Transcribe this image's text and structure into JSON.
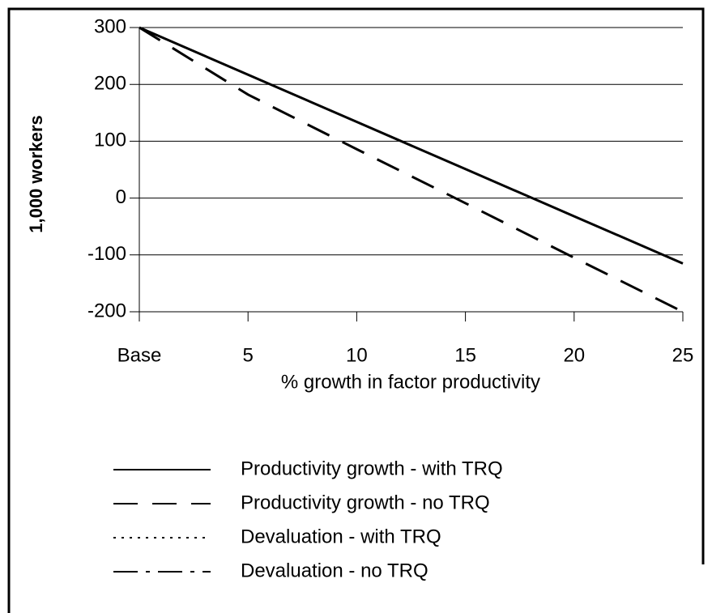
{
  "chart_data": {
    "type": "line",
    "ylabel": "1,000 workers",
    "xlabel": "% growth in factor productivity",
    "categories": [
      "Base",
      "5",
      "10",
      "15",
      "20",
      "25"
    ],
    "ylim": [
      -200,
      300
    ],
    "yticks": [
      -200,
      -100,
      0,
      100,
      200,
      300
    ],
    "grid": true,
    "series": [
      {
        "name": "Productivity growth - with TRQ",
        "color": "#000000",
        "dash": "solid",
        "values": [
          300,
          217,
          134,
          51,
          -32,
          -115
        ]
      },
      {
        "name": "Productivity growth - no TRQ",
        "color": "#000000",
        "dash": "dashed",
        "values": [
          300,
          182,
          86,
          -9,
          -105,
          -200
        ]
      },
      {
        "name": "Devaluation - with TRQ",
        "color": "#000000",
        "dash": "dotted",
        "values": [
          null,
          null,
          null,
          null,
          null,
          null
        ]
      },
      {
        "name": "Devaluation - no TRQ",
        "color": "#000000",
        "dash": "dashdot",
        "values": [
          null,
          null,
          null,
          null,
          null,
          null
        ]
      }
    ]
  }
}
